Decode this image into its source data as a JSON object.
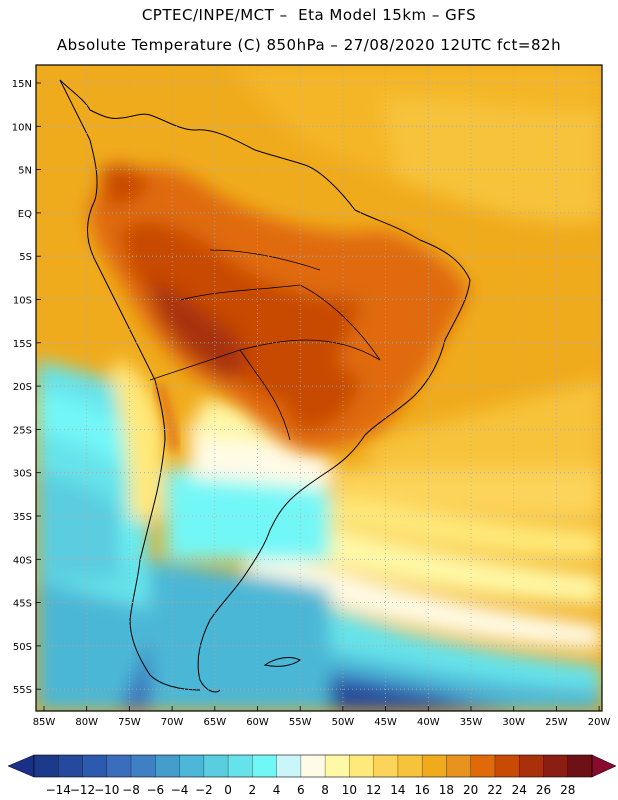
{
  "header": {
    "line1": "CPTEC/INPE/MCT –  Eta Model 15km – GFS",
    "line2": "Absolute Temperature (C) 850hPa – 27/08/2020 12UTC fct=82h"
  },
  "axes": {
    "lat_labels": [
      "15N",
      "10N",
      "5N",
      "EQ",
      "5S",
      "10S",
      "15S",
      "20S",
      "25S",
      "30S",
      "35S",
      "40S",
      "45S",
      "50S",
      "55S"
    ],
    "lon_labels": [
      "85W",
      "80W",
      "75W",
      "70W",
      "65W",
      "60W",
      "55W",
      "50W",
      "45W",
      "40W",
      "35W",
      "30W",
      "25W",
      "20W"
    ]
  },
  "colorbar": {
    "labels": [
      "-14",
      "-12",
      "-10",
      "-8",
      "-6",
      "-4",
      "-2",
      "0",
      "2",
      "4",
      "6",
      "8",
      "10",
      "12",
      "14",
      "16",
      "18",
      "20",
      "22",
      "24",
      "26",
      "28"
    ],
    "colors": [
      "#1c3a8a",
      "#24499d",
      "#2c5aae",
      "#3a6dbc",
      "#3f7fc3",
      "#459dcc",
      "#4cb7d6",
      "#5acde0",
      "#66e3ea",
      "#72f7f7",
      "#c9f5fb",
      "#fffbe6",
      "#fff8a6",
      "#ffe97a",
      "#fcd45a",
      "#f7c33a",
      "#f0ab1c",
      "#e8931e",
      "#e06a08",
      "#c84a04",
      "#a8300a",
      "#8a1e12",
      "#6e1116"
    ],
    "under_color": "#1a2f86",
    "over_color": "#8a0a2e"
  }
}
